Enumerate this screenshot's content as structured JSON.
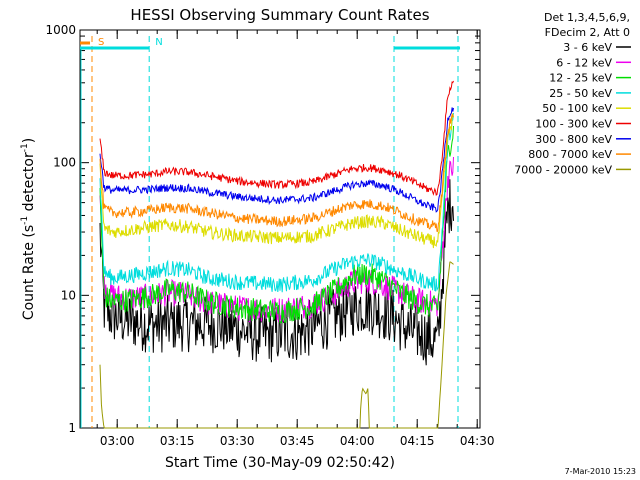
{
  "chart_data": {
    "type": "line",
    "title": "HESSI Observing Summary Count Rates",
    "xlabel": "Start Time (30-May-09 02:50:42)",
    "ylabel_main": "Count Rate (s",
    "ylabel_sup1": "-1",
    "ylabel_mid": " detector",
    "ylabel_sup2": "-1",
    "ylabel_end": ")",
    "yscale": "log",
    "ylim": [
      1,
      1000
    ],
    "xlim_minutes": [
      0,
      100
    ],
    "x_ticks": [
      {
        "label": "03:00",
        "t": 9.3
      },
      {
        "label": "03:15",
        "t": 24.3
      },
      {
        "label": "03:30",
        "t": 39.3
      },
      {
        "label": "03:45",
        "t": 54.3
      },
      {
        "label": "04:00",
        "t": 69.3
      },
      {
        "label": "04:15",
        "t": 84.3
      },
      {
        "label": "04:30",
        "t": 99.3
      }
    ],
    "y_ticks": [
      {
        "label": "1",
        "v": 1
      },
      {
        "label": "10",
        "v": 10
      },
      {
        "label": "100",
        "v": 100
      },
      {
        "label": "1000",
        "v": 1000
      }
    ],
    "legend_header": [
      "Det 1,3,4,5,6,9,",
      "FDecim 2, Att 0"
    ],
    "series": [
      {
        "name": "3 - 6 keV",
        "color": "#000000",
        "t": [
          5,
          6,
          8,
          12,
          18,
          25,
          35,
          45,
          55,
          62,
          68,
          72,
          78,
          82,
          86,
          88,
          89.5,
          90.5,
          92,
          93.5
        ],
        "v": [
          30,
          8,
          7,
          6.5,
          6,
          6.2,
          6,
          5,
          5.2,
          6.5,
          8,
          8.5,
          7,
          5.5,
          5,
          4.6,
          4.5,
          12,
          45,
          55
        ]
      },
      {
        "name": "6 - 12 keV",
        "color": "#ee00ee",
        "t": [
          5,
          6,
          8,
          12,
          18,
          22,
          27,
          32,
          40,
          50,
          58,
          64,
          68,
          72,
          76,
          80,
          84,
          87,
          89.5,
          90.5,
          92,
          93.5
        ],
        "v": [
          60,
          12,
          10,
          9.5,
          9.8,
          10.5,
          10,
          8.8,
          8,
          7.8,
          8.5,
          10.5,
          12.5,
          13,
          12,
          10.5,
          9.2,
          8.8,
          8.5,
          20,
          80,
          95
        ]
      },
      {
        "name": "12 - 25 keV",
        "color": "#00dd00",
        "t": [
          5,
          6,
          8,
          12,
          18,
          22,
          27,
          32,
          40,
          50,
          58,
          64,
          68,
          72,
          76,
          80,
          84,
          87,
          89.5,
          90.5,
          92,
          93.5
        ],
        "v": [
          60,
          10,
          9,
          9.2,
          10,
          11,
          10.5,
          9,
          8,
          7.5,
          8.3,
          11,
          14,
          14.5,
          13,
          10.5,
          9,
          8.3,
          8,
          25,
          120,
          180
        ]
      },
      {
        "name": "25 - 50 keV",
        "color": "#00dddd",
        "t": [
          5,
          6,
          8,
          12,
          18,
          22,
          27,
          32,
          40,
          50,
          58,
          64,
          68,
          72,
          76,
          80,
          84,
          87,
          89.5,
          90.5,
          92,
          93.5
        ],
        "v": [
          80,
          15,
          13.5,
          14,
          15,
          16,
          15.5,
          13.5,
          12.5,
          12,
          13,
          16,
          18,
          18.5,
          17,
          15,
          13.5,
          12.5,
          12,
          30,
          150,
          220
        ]
      },
      {
        "name": "50 - 100 keV",
        "color": "#dddd00",
        "t": [
          5,
          6,
          8,
          12,
          18,
          22,
          27,
          32,
          40,
          50,
          58,
          64,
          68,
          72,
          76,
          80,
          84,
          87,
          89.5,
          90.5,
          92,
          93.5
        ],
        "v": [
          90,
          32,
          30,
          31,
          33,
          34,
          33,
          30,
          28,
          27,
          28,
          32,
          35,
          36,
          35,
          31,
          28,
          26,
          25,
          50,
          160,
          230
        ]
      },
      {
        "name": "100 - 300 keV",
        "color": "#ee0000",
        "t": [
          5,
          6,
          8,
          12,
          18,
          22,
          27,
          32,
          40,
          50,
          58,
          64,
          68,
          72,
          76,
          80,
          84,
          87,
          89.5,
          90.5,
          92,
          93.5
        ],
        "v": [
          150,
          85,
          80,
          80,
          82,
          86,
          85,
          80,
          72,
          68,
          71,
          82,
          90,
          92,
          88,
          80,
          70,
          63,
          60,
          110,
          330,
          420
        ]
      },
      {
        "name": "300 - 800 keV",
        "color": "#0000ee",
        "t": [
          5,
          6,
          8,
          12,
          18,
          22,
          27,
          32,
          40,
          50,
          58,
          64,
          68,
          72,
          76,
          80,
          84,
          87,
          89.5,
          90.5,
          92,
          93.5
        ],
        "v": [
          120,
          65,
          62,
          62,
          63,
          65,
          64,
          60,
          55,
          52,
          54,
          62,
          68,
          70,
          67,
          60,
          52,
          47,
          45,
          80,
          220,
          270
        ]
      },
      {
        "name": "800 - 7000 keV",
        "color": "#ff8800",
        "t": [
          5,
          6,
          8,
          12,
          18,
          22,
          27,
          32,
          40,
          50,
          58,
          64,
          68,
          72,
          76,
          80,
          84,
          87,
          89.5,
          90.5,
          92,
          93.5
        ],
        "v": [
          100,
          45,
          42,
          42,
          44,
          46,
          45,
          42,
          38,
          36,
          38,
          44,
          48,
          49,
          47,
          42,
          37,
          34,
          33,
          60,
          180,
          240
        ]
      },
      {
        "name": "7000 - 20000 keV",
        "color": "#999900",
        "t": [
          5,
          5.4,
          6,
          70,
          70.2,
          70.6,
          71.5,
          72,
          72.3,
          89.5,
          90.5,
          91.5,
          92.5,
          93.5
        ],
        "v": [
          3,
          1.4,
          1,
          1,
          1.5,
          2,
          1.8,
          2,
          1,
          1,
          3,
          10,
          18,
          17
        ]
      }
    ],
    "markers": [
      {
        "label": "S",
        "color": "#ff8800",
        "t": 3,
        "bar_end": 0
      },
      {
        "label": "N",
        "color": "#00dddd",
        "t": 17.3,
        "bar_end": 17.3
      },
      {
        "label": "",
        "color": "#00dddd",
        "t": 78.5,
        "bar_end": 95
      },
      {
        "label": "",
        "color": "#00dddd",
        "t": 94.5,
        "bar_end": null
      }
    ],
    "timestamp": "7-Mar-2010 15:23"
  }
}
